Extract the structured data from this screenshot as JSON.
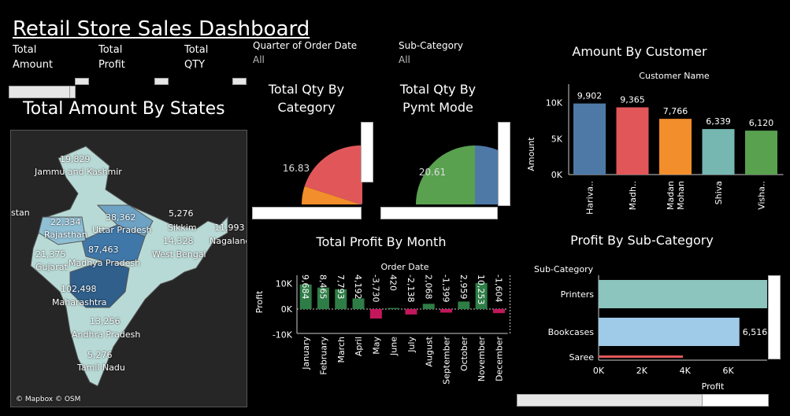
{
  "header": {
    "title": "Retail Store Sales Dashboard",
    "kpis": [
      {
        "line1": "Total",
        "line2": "Amount"
      },
      {
        "line1": "Total",
        "line2": "Profit"
      },
      {
        "line1": "Total",
        "line2": "QTY"
      }
    ],
    "filters": [
      {
        "label": "Quarter of Order Date",
        "value": "All"
      },
      {
        "label": "Sub-Category",
        "value": "All"
      }
    ]
  },
  "map_panel": {
    "title": "Total Amount By States",
    "attribution": "© Mapbox © OSM",
    "labels": [
      {
        "value": "19,829",
        "name": "Jammu and Kashmir"
      },
      {
        "value": "22,334",
        "name": "Rajasthan"
      },
      {
        "value": "38,362",
        "name": "Uttar Pradesh"
      },
      {
        "value": "5,276",
        "name": "Sikkim"
      },
      {
        "value": "11,993",
        "name": "Nagaland"
      },
      {
        "value": "21,375",
        "name": "Gujarat"
      },
      {
        "value": "87,463",
        "name": "Madhya Pradesh"
      },
      {
        "value": "14,328",
        "name": "West Bengal"
      },
      {
        "value": "102,498",
        "name": "Maharashtra"
      },
      {
        "value": "13,256",
        "name": "Andhra Pradesh"
      },
      {
        "value": "5,276",
        "name": "Tamil Nadu"
      }
    ],
    "partial_label": "stan"
  },
  "colors": {
    "blue": "#4e79a7",
    "red": "#e15759",
    "orange": "#f28e2b",
    "teal": "#76b7b2",
    "green": "#59a14f",
    "posBar": "#2e7d46",
    "negBar": "#c2185b",
    "barTeal": "#8cc4be",
    "barLightBlue": "#a0cbe8"
  },
  "chart_data": [
    {
      "type": "pie",
      "title": "Total Qty By Category",
      "slices": [
        {
          "value": 16.83,
          "color": "#e15759"
        },
        {
          "value": 0,
          "color": "#4e79a7"
        },
        {
          "value": 0,
          "color": "#f28e2b"
        }
      ],
      "label": "16.83"
    },
    {
      "type": "pie",
      "title": "Total Qty By Pymt Mode",
      "slices": [
        {
          "value": 20.61,
          "color": "#59a14f"
        },
        {
          "value": 0,
          "color": "#4e79a7"
        }
      ],
      "label": "20.61"
    },
    {
      "type": "bar",
      "title": "Amount By Customer",
      "xlabel": "Customer Name",
      "ylabel": "Amount",
      "categories": [
        "Hariva..",
        "Madh..",
        "Madan Mohan",
        "Shiva",
        "Visha.."
      ],
      "values": [
        9902,
        9365,
        7766,
        6339,
        6120
      ],
      "value_labels": [
        "9,902",
        "9,365",
        "7,766",
        "6,339",
        "6,120"
      ],
      "colors": [
        "#4e79a7",
        "#e15759",
        "#f28e2b",
        "#76b7b2",
        "#59a14f"
      ],
      "yticks": [
        "0K",
        "5K",
        "10K"
      ],
      "ylim": [
        0,
        11500
      ]
    },
    {
      "type": "bar",
      "title": "Total Profit By Month",
      "xlabel": "Order Date",
      "ylabel": "Profit",
      "categories": [
        "January",
        "February",
        "March",
        "April",
        "May",
        "June",
        "July",
        "August",
        "September",
        "October",
        "November",
        "December"
      ],
      "values": [
        9684,
        8465,
        7793,
        4192,
        -3730,
        420,
        -2138,
        2068,
        -1399,
        2959,
        10253,
        -1604
      ],
      "value_labels": [
        "9,684",
        "8,465",
        "7,793",
        "4,192",
        "-3,730",
        "420",
        "-2,138",
        "2,068",
        "-1,399",
        "2,959",
        "10,253",
        "-1,604"
      ],
      "yticks": [
        "-10K",
        "0K",
        "10K"
      ],
      "ylim": [
        -13000,
        13000
      ]
    },
    {
      "type": "bar",
      "orientation": "horizontal",
      "title": "Profit By Sub-Category",
      "ylabel": "Sub-Category",
      "xlabel": "Profit",
      "categories": [
        "Printers",
        "Bookcases",
        "Saree"
      ],
      "values": [
        7800,
        6516,
        3900
      ],
      "value_labels": [
        "",
        "6,516",
        ""
      ],
      "colors": [
        "#8cc4be",
        "#a0cbe8",
        "#e15759"
      ],
      "xticks": [
        "0K",
        "2K",
        "4K",
        "6K"
      ],
      "xlim": [
        0,
        7800
      ]
    }
  ]
}
